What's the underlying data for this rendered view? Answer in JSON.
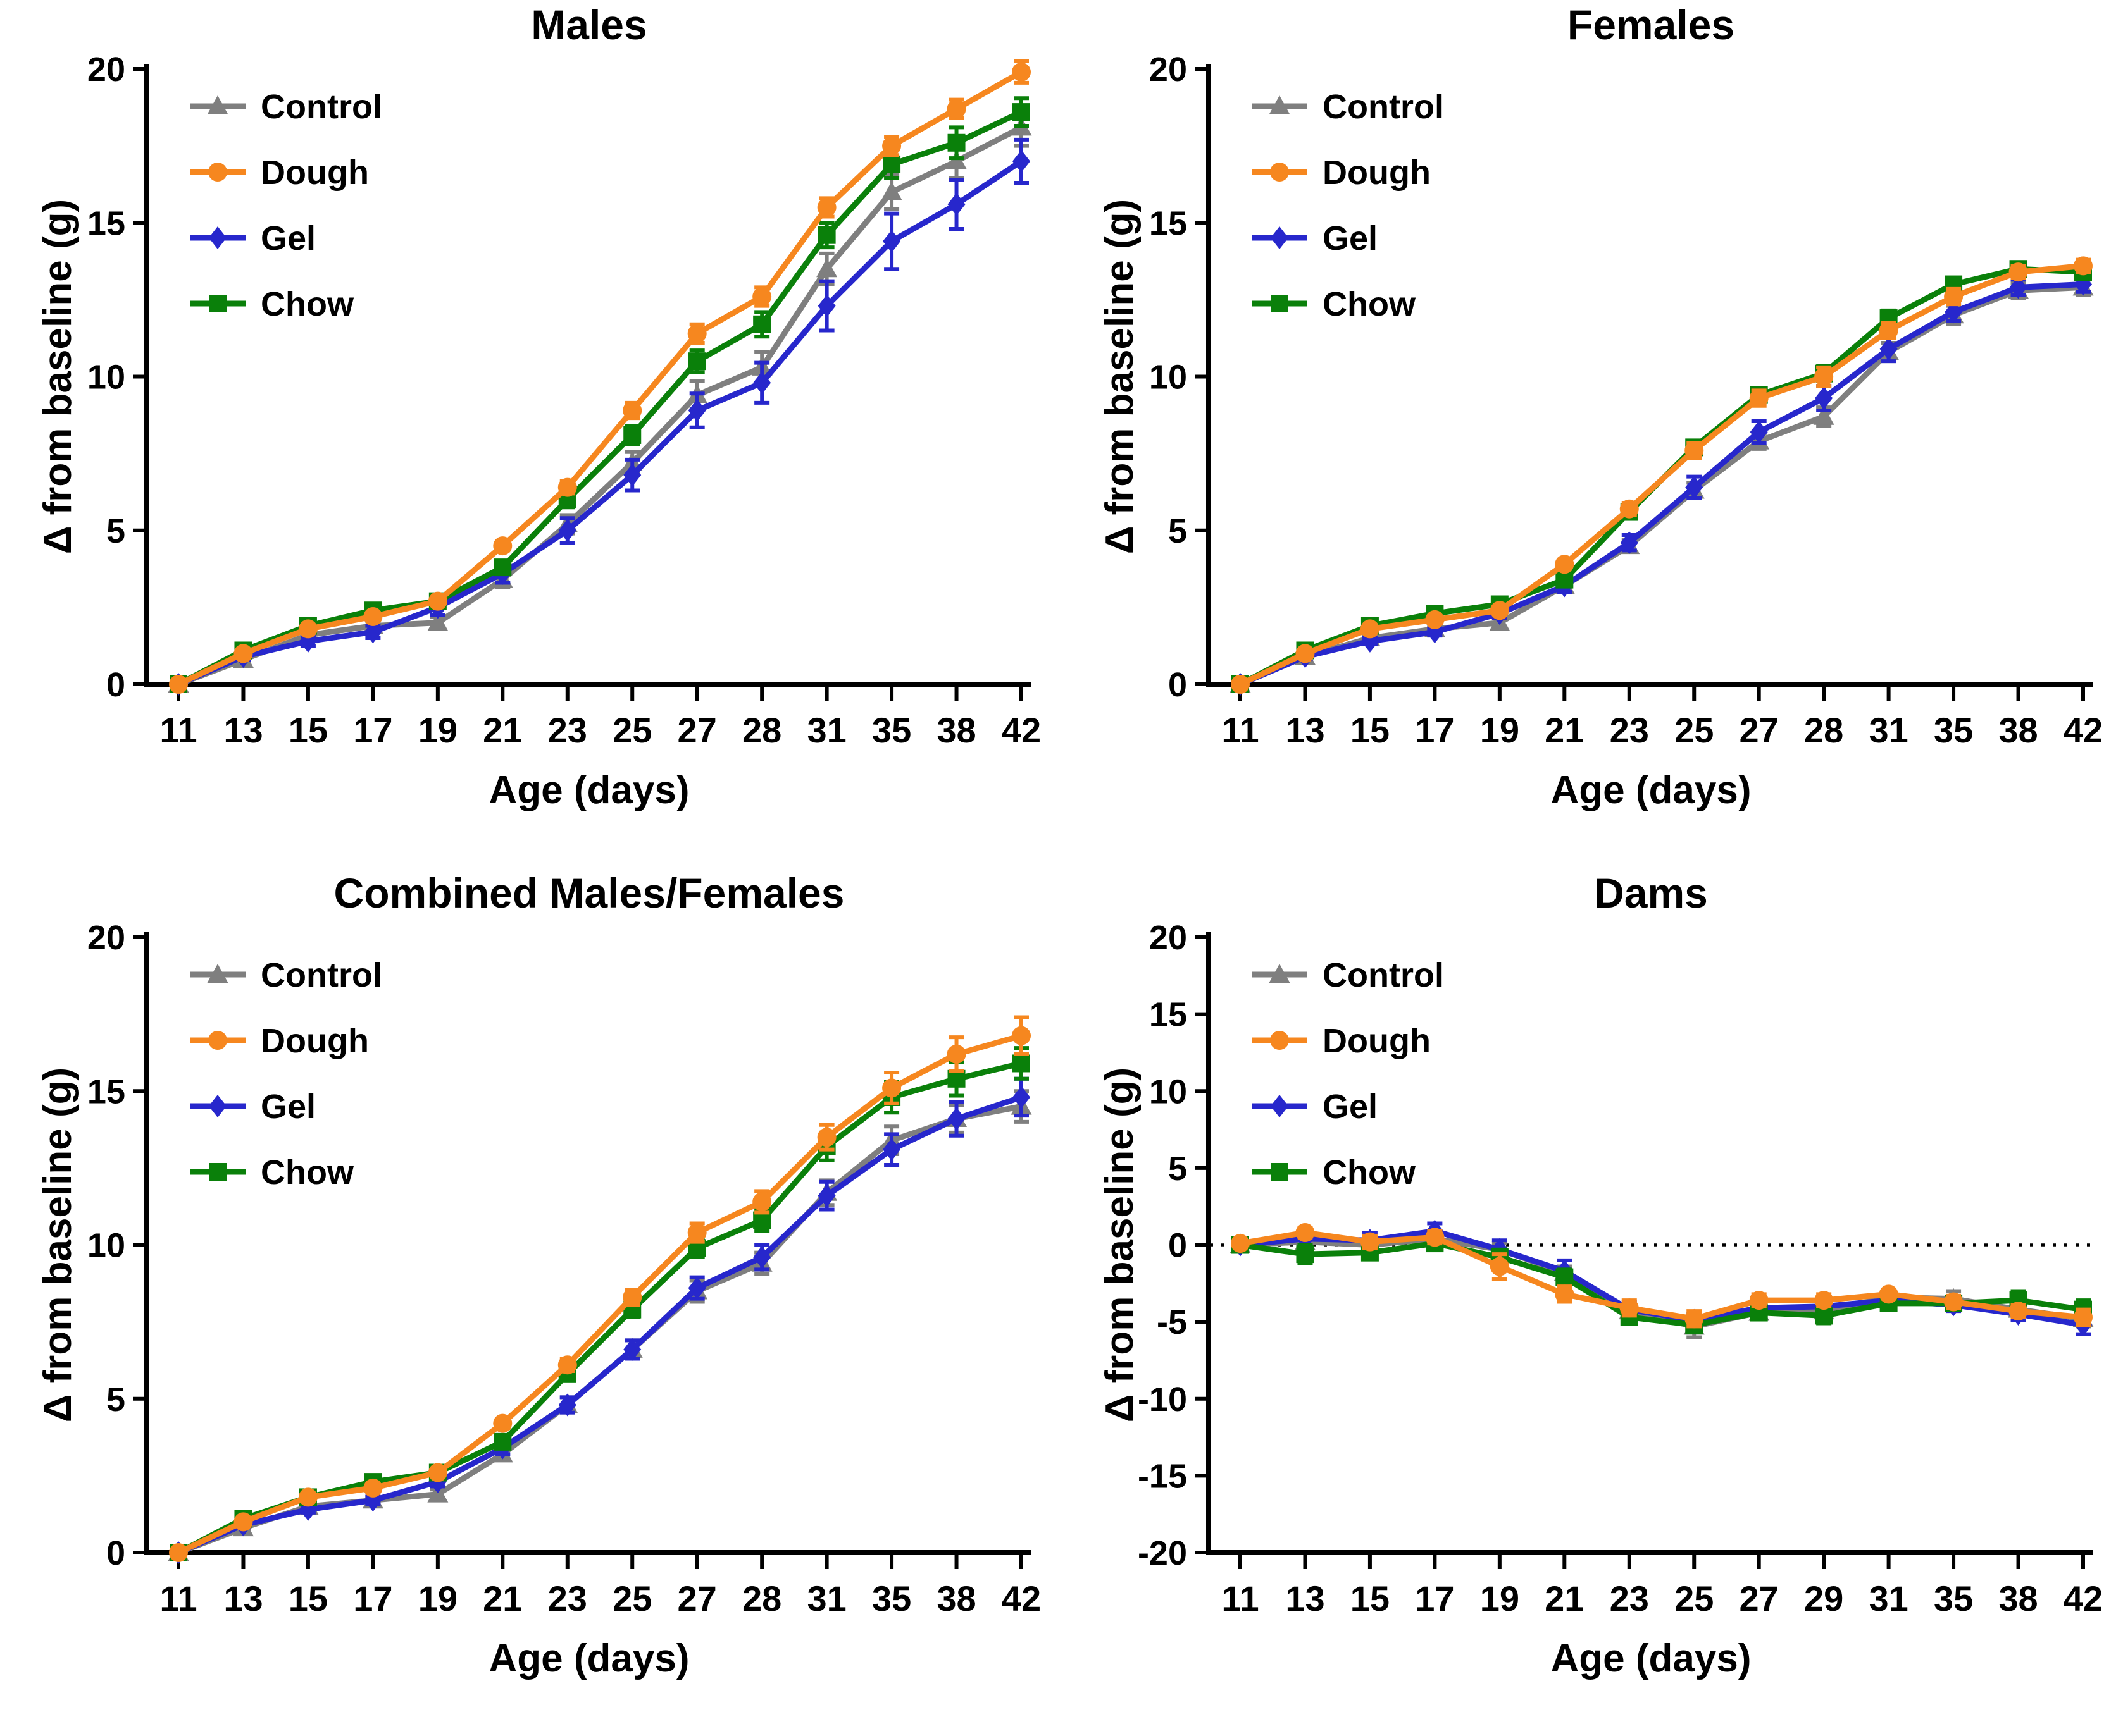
{
  "figure": {
    "background": "#ffffff",
    "series_colors": {
      "control": "#7f7f7f",
      "dough": "#f6871f",
      "gel": "#2727cc",
      "chow": "#0a800a"
    }
  },
  "charts": [
    {
      "type": "line",
      "title": "Males",
      "xlabel": "Age (days)",
      "ylabel": "Δ from baseline (g)",
      "x_categories": [
        11,
        13,
        15,
        17,
        19,
        21,
        23,
        25,
        27,
        28,
        31,
        35,
        38,
        42
      ],
      "ylim": [
        0,
        20
      ],
      "yticks": [
        0,
        5,
        10,
        15,
        20
      ],
      "zero_line": false,
      "legend_position": "top-left",
      "grid": false,
      "series": [
        {
          "name": "Control",
          "color": "#7f7f7f",
          "marker": "triangle",
          "values": [
            0,
            0.8,
            1.6,
            1.9,
            2.0,
            3.4,
            5.2,
            7.2,
            9.4,
            10.3,
            13.5,
            16.0,
            17.0,
            18.1
          ],
          "errors": [
            0,
            0.1,
            0.15,
            0.15,
            0.2,
            0.25,
            0.3,
            0.35,
            0.45,
            0.5,
            0.5,
            0.55,
            0.55,
            0.6
          ]
        },
        {
          "name": "Dough",
          "color": "#f6871f",
          "marker": "circle",
          "values": [
            0,
            1.0,
            1.8,
            2.2,
            2.7,
            4.5,
            6.4,
            8.9,
            11.4,
            12.6,
            15.5,
            17.5,
            18.7,
            19.9
          ],
          "errors": [
            0,
            0.08,
            0.1,
            0.1,
            0.12,
            0.15,
            0.2,
            0.25,
            0.3,
            0.3,
            0.3,
            0.3,
            0.3,
            0.35
          ]
        },
        {
          "name": "Gel",
          "color": "#2727cc",
          "marker": "diamond",
          "values": [
            0,
            0.9,
            1.4,
            1.7,
            2.5,
            3.6,
            5.0,
            6.8,
            8.9,
            9.8,
            12.3,
            14.4,
            15.6,
            17.0
          ],
          "errors": [
            0,
            0.1,
            0.15,
            0.2,
            0.25,
            0.3,
            0.4,
            0.5,
            0.55,
            0.65,
            0.8,
            0.9,
            0.8,
            0.7
          ]
        },
        {
          "name": "Chow",
          "color": "#0a800a",
          "marker": "square",
          "values": [
            0,
            1.1,
            1.9,
            2.4,
            2.7,
            3.8,
            6.0,
            8.1,
            10.5,
            11.7,
            14.6,
            16.9,
            17.6,
            18.6
          ],
          "errors": [
            0,
            0.1,
            0.1,
            0.15,
            0.15,
            0.2,
            0.25,
            0.3,
            0.35,
            0.4,
            0.4,
            0.45,
            0.5,
            0.45
          ]
        }
      ]
    },
    {
      "type": "line",
      "title": "Females",
      "xlabel": "Age (days)",
      "ylabel": "Δ from baseline (g)",
      "x_categories": [
        11,
        13,
        15,
        17,
        19,
        21,
        23,
        25,
        27,
        28,
        31,
        35,
        38,
        42
      ],
      "ylim": [
        0,
        20
      ],
      "yticks": [
        0,
        5,
        10,
        15,
        20
      ],
      "zero_line": false,
      "legend_position": "top-left",
      "grid": false,
      "series": [
        {
          "name": "Control",
          "color": "#7f7f7f",
          "marker": "triangle",
          "values": [
            0,
            0.9,
            1.5,
            1.8,
            2.0,
            3.2,
            4.5,
            6.3,
            7.9,
            8.7,
            10.8,
            12.0,
            12.8,
            12.9
          ],
          "errors": [
            0,
            0.08,
            0.1,
            0.12,
            0.15,
            0.15,
            0.2,
            0.25,
            0.25,
            0.3,
            0.3,
            0.3,
            0.25,
            0.25
          ]
        },
        {
          "name": "Dough",
          "color": "#f6871f",
          "marker": "circle",
          "values": [
            0,
            1.0,
            1.8,
            2.1,
            2.4,
            3.9,
            5.7,
            7.6,
            9.3,
            10.0,
            11.5,
            12.6,
            13.4,
            13.6
          ],
          "errors": [
            0,
            0.08,
            0.1,
            0.1,
            0.12,
            0.15,
            0.2,
            0.25,
            0.25,
            0.3,
            0.25,
            0.25,
            0.2,
            0.2
          ]
        },
        {
          "name": "Gel",
          "color": "#2727cc",
          "marker": "diamond",
          "values": [
            0,
            0.9,
            1.4,
            1.7,
            2.3,
            3.2,
            4.6,
            6.4,
            8.2,
            9.3,
            10.9,
            12.1,
            12.9,
            13.0
          ],
          "errors": [
            0,
            0.08,
            0.1,
            0.12,
            0.15,
            0.2,
            0.25,
            0.35,
            0.35,
            0.4,
            0.4,
            0.3,
            0.25,
            0.25
          ]
        },
        {
          "name": "Chow",
          "color": "#0a800a",
          "marker": "square",
          "values": [
            0,
            1.1,
            1.9,
            2.3,
            2.6,
            3.4,
            5.6,
            7.7,
            9.4,
            10.1,
            11.9,
            13.0,
            13.5,
            13.4
          ],
          "errors": [
            0,
            0.08,
            0.1,
            0.1,
            0.12,
            0.15,
            0.2,
            0.2,
            0.2,
            0.25,
            0.25,
            0.2,
            0.2,
            0.2
          ]
        }
      ]
    },
    {
      "type": "line",
      "title": "Combined Males/Females",
      "xlabel": "Age (days)",
      "ylabel": "Δ from baseline (g)",
      "x_categories": [
        11,
        13,
        15,
        17,
        19,
        21,
        23,
        25,
        27,
        28,
        31,
        35,
        38,
        42
      ],
      "ylim": [
        0,
        20
      ],
      "yticks": [
        0,
        5,
        10,
        15,
        20
      ],
      "zero_line": false,
      "legend_position": "top-left",
      "grid": false,
      "series": [
        {
          "name": "Control",
          "color": "#7f7f7f",
          "marker": "triangle",
          "values": [
            0,
            0.8,
            1.5,
            1.7,
            1.9,
            3.2,
            4.8,
            6.6,
            8.5,
            9.4,
            11.7,
            13.4,
            14.1,
            14.5
          ],
          "errors": [
            0,
            0.08,
            0.1,
            0.12,
            0.15,
            0.2,
            0.25,
            0.3,
            0.35,
            0.35,
            0.4,
            0.45,
            0.45,
            0.5
          ]
        },
        {
          "name": "Dough",
          "color": "#f6871f",
          "marker": "circle",
          "values": [
            0,
            1.0,
            1.8,
            2.1,
            2.6,
            4.2,
            6.1,
            8.3,
            10.4,
            11.4,
            13.5,
            15.1,
            16.2,
            16.8
          ],
          "errors": [
            0,
            0.08,
            0.1,
            0.1,
            0.12,
            0.15,
            0.2,
            0.25,
            0.3,
            0.35,
            0.4,
            0.5,
            0.55,
            0.6
          ]
        },
        {
          "name": "Gel",
          "color": "#2727cc",
          "marker": "diamond",
          "values": [
            0,
            0.9,
            1.4,
            1.7,
            2.3,
            3.4,
            4.8,
            6.6,
            8.6,
            9.6,
            11.6,
            13.1,
            14.1,
            14.8
          ],
          "errors": [
            0,
            0.08,
            0.1,
            0.12,
            0.15,
            0.2,
            0.25,
            0.3,
            0.35,
            0.4,
            0.45,
            0.5,
            0.55,
            0.6
          ]
        },
        {
          "name": "Chow",
          "color": "#0a800a",
          "marker": "square",
          "values": [
            0,
            1.1,
            1.8,
            2.3,
            2.6,
            3.6,
            5.8,
            7.9,
            9.9,
            10.8,
            13.2,
            14.8,
            15.4,
            15.9
          ],
          "errors": [
            0,
            0.08,
            0.1,
            0.1,
            0.12,
            0.15,
            0.2,
            0.25,
            0.3,
            0.35,
            0.45,
            0.5,
            0.55,
            0.5
          ]
        }
      ]
    },
    {
      "type": "line",
      "title": "Dams",
      "xlabel": "Age (days)",
      "ylabel": "Δ from baseline (g)",
      "x_categories": [
        11,
        13,
        15,
        17,
        19,
        21,
        23,
        25,
        27,
        29,
        31,
        35,
        38,
        42
      ],
      "ylim": [
        -20,
        20
      ],
      "yticks": [
        -20,
        -15,
        -10,
        -5,
        0,
        5,
        10,
        15,
        20
      ],
      "zero_line": true,
      "legend_position": "top-left",
      "grid": false,
      "series": [
        {
          "name": "Control",
          "color": "#7f7f7f",
          "marker": "triangle",
          "values": [
            0,
            0.2,
            0,
            0.4,
            -0.3,
            -1.8,
            -4.3,
            -5.3,
            -4.4,
            -4.3,
            -3.4,
            -3.5,
            -4.2,
            -4.8
          ],
          "errors": [
            0.2,
            0.3,
            0.3,
            0.3,
            0.4,
            0.4,
            0.4,
            0.7,
            0.4,
            0.4,
            0.4,
            0.5,
            0.4,
            0.5
          ]
        },
        {
          "name": "Dough",
          "color": "#f6871f",
          "marker": "circle",
          "values": [
            0.1,
            0.8,
            0.2,
            0.5,
            -1.4,
            -3.2,
            -4.1,
            -4.8,
            -3.6,
            -3.6,
            -3.2,
            -3.7,
            -4.3,
            -4.7
          ],
          "errors": [
            0.2,
            0.3,
            0.4,
            0.4,
            0.8,
            0.5,
            0.5,
            0.5,
            0.4,
            0.4,
            0.3,
            0.4,
            0.4,
            0.5
          ]
        },
        {
          "name": "Gel",
          "color": "#2727cc",
          "marker": "diamond",
          "values": [
            0,
            0.4,
            0.3,
            0.9,
            -0.3,
            -1.7,
            -4.2,
            -4.9,
            -4.1,
            -4.0,
            -3.6,
            -3.9,
            -4.5,
            -5.2
          ],
          "errors": [
            0.2,
            0.4,
            0.5,
            0.5,
            0.6,
            0.7,
            0.5,
            0.4,
            0.4,
            0.4,
            0.4,
            0.4,
            0.4,
            0.6
          ]
        },
        {
          "name": "Chow",
          "color": "#0a800a",
          "marker": "square",
          "values": [
            0,
            -0.6,
            -0.5,
            0.1,
            -0.8,
            -2.1,
            -4.7,
            -5.2,
            -4.4,
            -4.6,
            -3.8,
            -3.8,
            -3.6,
            -4.2
          ],
          "errors": [
            0.2,
            0.6,
            0.4,
            0.4,
            0.5,
            0.5,
            0.4,
            0.5,
            0.4,
            0.5,
            0.4,
            0.4,
            0.6,
            0.6
          ]
        }
      ]
    }
  ]
}
